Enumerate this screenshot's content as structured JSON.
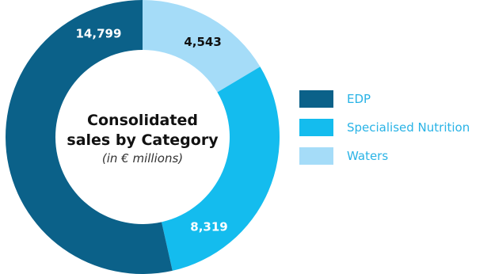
{
  "chart_data": {
    "type": "pie",
    "title": "Consolidated sales by Category",
    "subtitle": "(in € millions)",
    "categories": [
      "EDP",
      "Specialised Nutrition",
      "Waters"
    ],
    "values": [
      14799,
      8319,
      4543
    ],
    "value_labels": [
      "14,799",
      "8,319",
      "4,543"
    ],
    "colors": [
      "#0b6189",
      "#14bcee",
      "#a5dcf8"
    ],
    "label_colors": [
      "#ffffff",
      "#ffffff",
      "#111111"
    ],
    "legend_placement": "right",
    "donut": true
  },
  "center": {
    "title_line1": "Consolidated",
    "title_line2": "sales by Category",
    "subtitle": "(in € millions)"
  }
}
